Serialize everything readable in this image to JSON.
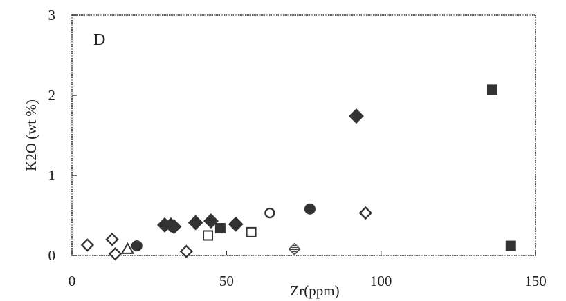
{
  "chart_data": {
    "type": "scatter",
    "panel_label": "D",
    "xlabel": "Zr(ppm)",
    "ylabel": "K2O (wt %)",
    "xlim": [
      0,
      150
    ],
    "ylim": [
      0,
      3
    ],
    "xticks": [
      "0",
      "50",
      "100",
      "150"
    ],
    "yticks": [
      "0",
      "1",
      "2",
      "3"
    ],
    "grid": false,
    "series": [
      {
        "marker": "filled-diamond",
        "color": "#333333",
        "points": [
          [
            30,
            0.38
          ],
          [
            32,
            0.38
          ],
          [
            33,
            0.36
          ],
          [
            40,
            0.41
          ],
          [
            45,
            0.43
          ],
          [
            53,
            0.39
          ],
          [
            92,
            1.74
          ]
        ]
      },
      {
        "marker": "filled-square",
        "color": "#333333",
        "points": [
          [
            48,
            0.34
          ],
          [
            136,
            2.07
          ],
          [
            142,
            0.12
          ]
        ]
      },
      {
        "marker": "filled-circle",
        "color": "#333333",
        "points": [
          [
            21,
            0.12
          ],
          [
            77,
            0.58
          ]
        ]
      },
      {
        "marker": "open-diamond",
        "color": "#333333",
        "points": [
          [
            5,
            0.13
          ],
          [
            13,
            0.2
          ],
          [
            14,
            0.02
          ],
          [
            37,
            0.05
          ],
          [
            95,
            0.53
          ]
        ]
      },
      {
        "marker": "open-square",
        "color": "#333333",
        "points": [
          [
            44,
            0.25
          ],
          [
            58,
            0.29
          ]
        ]
      },
      {
        "marker": "open-circle",
        "color": "#333333",
        "points": [
          [
            64,
            0.53
          ]
        ]
      },
      {
        "marker": "open-triangle",
        "color": "#333333",
        "points": [
          [
            18,
            0.07
          ]
        ]
      },
      {
        "marker": "hatched-diamond",
        "color": "#555555",
        "points": [
          [
            72,
            0.08
          ]
        ]
      }
    ]
  }
}
